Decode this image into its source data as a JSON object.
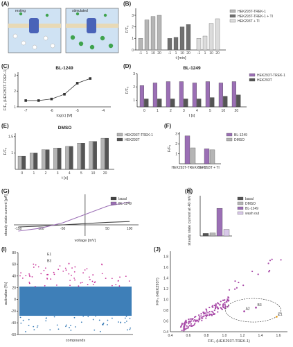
{
  "panels": {
    "A": {
      "label": "(A)",
      "left_title": "resting",
      "right_title": "stimulated"
    },
    "B": {
      "label": "(B)",
      "ylabel": "F/F₀",
      "xlabel": "t [min]",
      "legend": [
        "HEK293T-TREK-1",
        "HEK293T-TREK-1 + TI",
        "HEK293T + TI"
      ],
      "ticks_x": [
        "-1",
        "1",
        "10",
        "20",
        "-1",
        "1",
        "10",
        "20",
        "-1",
        "1",
        "10",
        "20"
      ]
    },
    "C": {
      "label": "(C)",
      "title": "BL-1249",
      "ylabel": "F/F₀ (HEK293T-TREK-1)",
      "xlabel": "log(c) [M]",
      "xticks": [
        "-7",
        "-6",
        "-5",
        "-4"
      ]
    },
    "D": {
      "label": "(D)",
      "title": "BL-1249",
      "ylabel": "F/F₀",
      "xlabel": "t [s]",
      "legend": [
        "HEK293T-TREK-1",
        "HEK293T"
      ],
      "xticks": [
        "0",
        "1",
        "2",
        "3",
        "4",
        "5",
        "10",
        "20"
      ]
    },
    "E": {
      "label": "(E)",
      "title": "DMSO",
      "ylabel": "F/F₀",
      "xlabel": "t [s]",
      "legend": [
        "HEK293T-TREK-1",
        "HEK293T"
      ],
      "xticks": [
        "0",
        "1",
        "2",
        "3",
        "4",
        "5",
        "10",
        "20"
      ]
    },
    "F": {
      "label": "(F)",
      "ylabel": "F/F₀",
      "legend": [
        "BL-1249",
        "DMSO"
      ],
      "xticks": [
        "HEK293T-TREK-1 + TI",
        "HEK293T + TI"
      ]
    },
    "G": {
      "label": "(G)",
      "ylabel": "steady state current [pA]",
      "xlabel": "voltage [mV]",
      "legend": [
        "basal",
        "BL-1249"
      ],
      "xticks": [
        "-150",
        "-100",
        "-50",
        "50",
        "100"
      ]
    },
    "H": {
      "label": "(H)",
      "ylabel": "steady state current at 40 mV [pA]",
      "legend": [
        "basal",
        "DMSO",
        "BL-1249",
        "wash out"
      ]
    },
    "I": {
      "label": "(I)",
      "ylabel": "activation [%]",
      "xlabel": "compounds",
      "annotations": [
        "E1",
        "B3"
      ],
      "yticks": [
        "80",
        "60",
        "40",
        "20",
        "0",
        "-20",
        "-40",
        "-60"
      ]
    },
    "J": {
      "label": "(J)",
      "ylabel": "F/F₀ (HEK293T)",
      "xlabel": "F/F₀ (HEK293T-TREK-1)",
      "annotations": [
        "B3",
        "A2",
        "E1"
      ],
      "xticks": [
        "0.4",
        "0.6",
        "0.8",
        "1.0",
        "1.2",
        "1.4",
        "1.6"
      ],
      "yticks": [
        "1.8",
        "1.6",
        "1.4",
        "1.2",
        "1.0",
        "0.8",
        "0.6",
        "0.4"
      ]
    }
  },
  "chart_data": [
    {
      "panel": "B",
      "type": "bar",
      "categories": [
        "-1",
        "1",
        "10",
        "20"
      ],
      "series": [
        {
          "name": "HEK293T-TREK-1",
          "values": [
            1.0,
            2.6,
            2.9,
            3.0
          ]
        },
        {
          "name": "HEK293T-TREK-1 + TI",
          "values": [
            1.0,
            1.1,
            2.0,
            2.2
          ]
        },
        {
          "name": "HEK293T + TI",
          "values": [
            1.0,
            1.2,
            2.3,
            2.7
          ]
        }
      ],
      "ylim": [
        0,
        3.6
      ],
      "yticks": [
        0,
        1,
        2,
        3
      ]
    },
    {
      "panel": "C",
      "type": "line",
      "x": [
        -7.0,
        -6.5,
        -6.0,
        -5.5,
        -5.0,
        -4.5
      ],
      "y": [
        1.4,
        1.4,
        1.5,
        1.8,
        2.5,
        2.8
      ],
      "ylim": [
        1.0,
        3.2
      ],
      "yticks": [
        1.0,
        2.0,
        3.0
      ]
    },
    {
      "panel": "D",
      "type": "bar",
      "categories": [
        "0",
        "1",
        "2",
        "3",
        "4",
        "5",
        "10",
        "20"
      ],
      "series": [
        {
          "name": "HEK293T-TREK-1",
          "values": [
            2.1,
            2.3,
            2.4,
            2.4,
            2.3,
            2.4,
            2.3,
            2.4
          ]
        },
        {
          "name": "HEK293T",
          "values": [
            1.1,
            1.1,
            1.1,
            1.1,
            1.1,
            1.2,
            1.3,
            1.4
          ]
        }
      ],
      "ylim": [
        0.5,
        3.0
      ],
      "yticks": [
        1,
        2,
        3
      ]
    },
    {
      "panel": "E",
      "type": "bar",
      "categories": [
        "0",
        "1",
        "2",
        "3",
        "4",
        "5",
        "10",
        "20"
      ],
      "series": [
        {
          "name": "HEK293T-TREK-1",
          "values": [
            0.9,
            1.0,
            1.1,
            1.15,
            1.2,
            1.3,
            1.35,
            1.45
          ]
        },
        {
          "name": "HEK293T",
          "values": [
            0.9,
            1.0,
            1.1,
            1.15,
            1.2,
            1.3,
            1.35,
            1.45
          ]
        }
      ],
      "ylim": [
        0.5,
        1.6
      ],
      "yticks": [
        1.0,
        1.5
      ]
    },
    {
      "panel": "F",
      "type": "bar",
      "categories": [
        "HEK293T-TREK-1 + TI",
        "HEK293T + TI"
      ],
      "series": [
        {
          "name": "BL-1249",
          "values": [
            2.8,
            1.5
          ]
        },
        {
          "name": "DMSO",
          "values": [
            1.6,
            1.4
          ]
        }
      ],
      "ylim": [
        0,
        3.2
      ],
      "yticks": [
        1,
        2,
        3
      ]
    },
    {
      "panel": "G",
      "type": "line",
      "x": [
        -150,
        -100,
        -50,
        0,
        50,
        100
      ],
      "series": [
        {
          "name": "basal",
          "values": [
            -0.05,
            -0.03,
            0.0,
            0.03,
            0.06,
            0.08
          ]
        },
        {
          "name": "BL-1249",
          "values": [
            -0.15,
            -0.08,
            0.05,
            0.25,
            0.45,
            0.55
          ]
        }
      ]
    },
    {
      "panel": "H",
      "type": "bar",
      "categories": [
        "basal",
        "DMSO",
        "BL-1249",
        "wash out"
      ],
      "values": [
        0.5,
        0.6,
        5.5,
        1.3
      ],
      "ylim": [
        0,
        8
      ]
    },
    {
      "panel": "I",
      "type": "scatter",
      "ylim": [
        -60,
        80
      ],
      "yticks": [
        80,
        60,
        40,
        20,
        0,
        -20,
        -40,
        -60
      ],
      "annotations": [
        {
          "label": "E1",
          "y": 75
        },
        {
          "label": "B3",
          "y": 64
        }
      ]
    },
    {
      "panel": "J",
      "type": "scatter",
      "xlim": [
        0.4,
        1.7
      ],
      "ylim": [
        0.4,
        1.9
      ],
      "annotations": [
        {
          "label": "B3",
          "x": 1.35,
          "y": 0.85
        },
        {
          "label": "A2",
          "x": 1.22,
          "y": 0.78
        },
        {
          "label": "E1",
          "x": 1.58,
          "y": 0.68
        }
      ]
    }
  ]
}
